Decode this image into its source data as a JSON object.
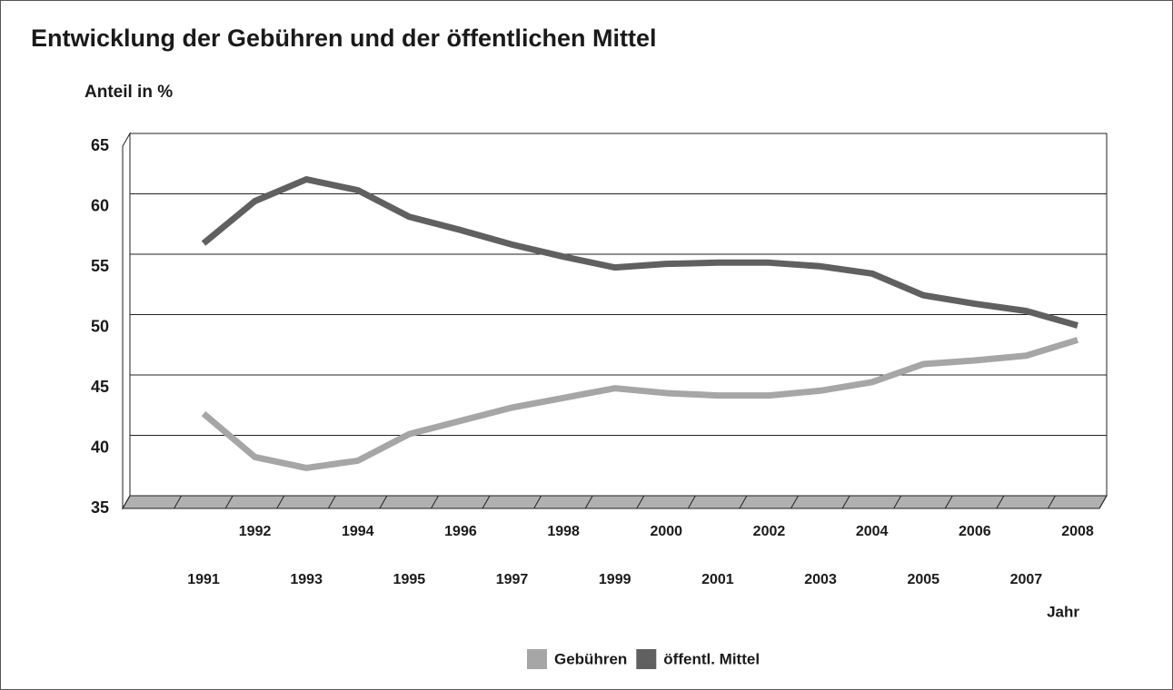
{
  "chart_data": {
    "type": "line",
    "title": "Entwicklung der Gebühren und der öffentlichen Mittel",
    "y_label": "Anteil in %",
    "x_label": "Jahr",
    "categories": [
      "1991",
      "1992",
      "1993",
      "1994",
      "1995",
      "1996",
      "1997",
      "1998",
      "1999",
      "2000",
      "2001",
      "2002",
      "2003",
      "2004",
      "2005",
      "2006",
      "2007",
      "2008"
    ],
    "series": [
      {
        "name": "Gebühren",
        "color": "#a6a6a6",
        "values": [
          41.8,
          38.2,
          37.3,
          37.9,
          40.1,
          41.2,
          42.3,
          43.1,
          43.9,
          43.5,
          43.3,
          43.3,
          43.7,
          44.4,
          45.9,
          46.2,
          46.6,
          47.9
        ]
      },
      {
        "name": "öffentl. Mittel",
        "color": "#606060",
        "values": [
          55.9,
          59.4,
          61.2,
          60.3,
          58.1,
          57.0,
          55.8,
          54.8,
          53.9,
          54.2,
          54.3,
          54.3,
          54.0,
          53.4,
          51.6,
          50.9,
          50.3,
          49.1
        ]
      }
    ],
    "ylim": [
      35,
      65
    ],
    "yticks": [
      35,
      40,
      45,
      50,
      55,
      60,
      65
    ],
    "grid": true,
    "legend": "bottom"
  }
}
